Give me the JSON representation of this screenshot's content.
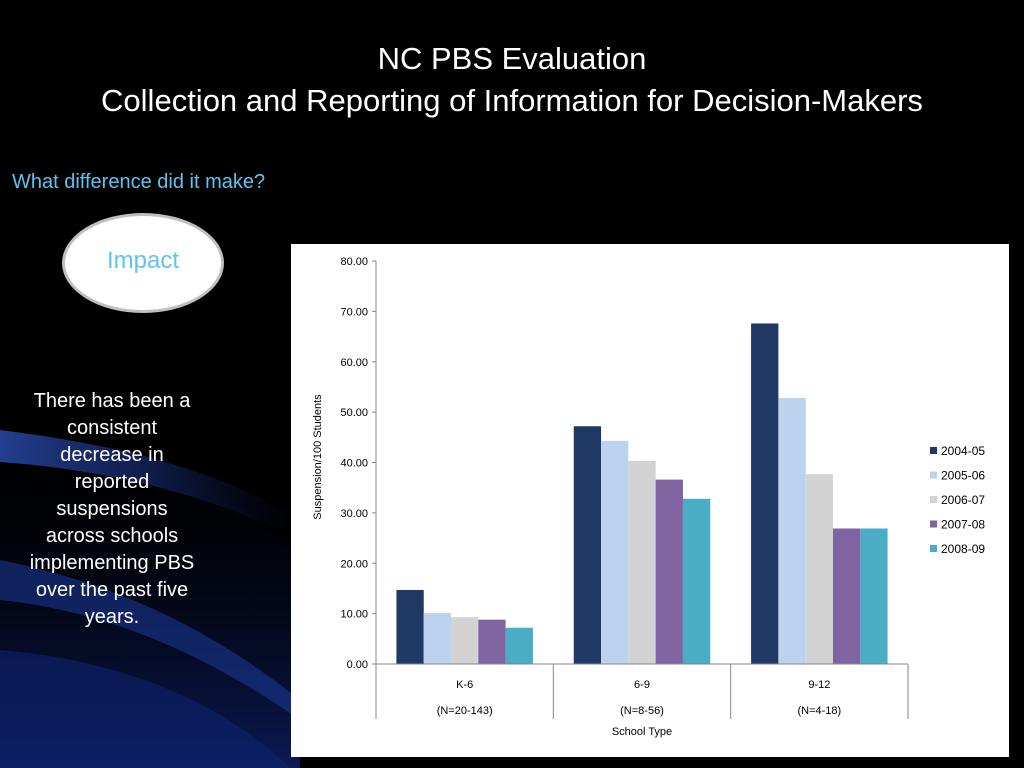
{
  "slide": {
    "title_line1": "NC PBS Evaluation",
    "title_line2": "Collection and Reporting of Information for Decision-Makers",
    "question": "What difference did it make?",
    "impact_label": "Impact",
    "body_text": "There has been a consistent decrease in reported suspensions across schools implementing PBS over the past five years."
  },
  "chart_data": {
    "type": "bar",
    "title": "",
    "xlabel": "School Type",
    "ylabel": "Suspension/100 Students",
    "ylim": [
      0,
      80
    ],
    "y_ticks": [
      "0.00",
      "10.00",
      "20.00",
      "30.00",
      "40.00",
      "50.00",
      "60.00",
      "70.00",
      "80.00"
    ],
    "categories": [
      "K-6",
      "6-9",
      "9-12"
    ],
    "category_sublabels": [
      "(N=20-143)",
      "(N=8-56)",
      "(N=4-18)"
    ],
    "legend_position": "right",
    "grid": false,
    "series": [
      {
        "name": "2004-05",
        "color": "#1f3864",
        "values": [
          14.7,
          47.2,
          67.6
        ]
      },
      {
        "name": "2005-06",
        "color": "#bdd2ee",
        "values": [
          10.1,
          44.3,
          52.8
        ]
      },
      {
        "name": "2006-07",
        "color": "#d3d3d3",
        "values": [
          9.3,
          40.3,
          37.7
        ]
      },
      {
        "name": "2007-08",
        "color": "#8064a2",
        "values": [
          8.8,
          36.6,
          26.9
        ]
      },
      {
        "name": "2008-09",
        "color": "#4bacc6",
        "values": [
          7.2,
          32.8,
          26.9
        ]
      }
    ]
  }
}
